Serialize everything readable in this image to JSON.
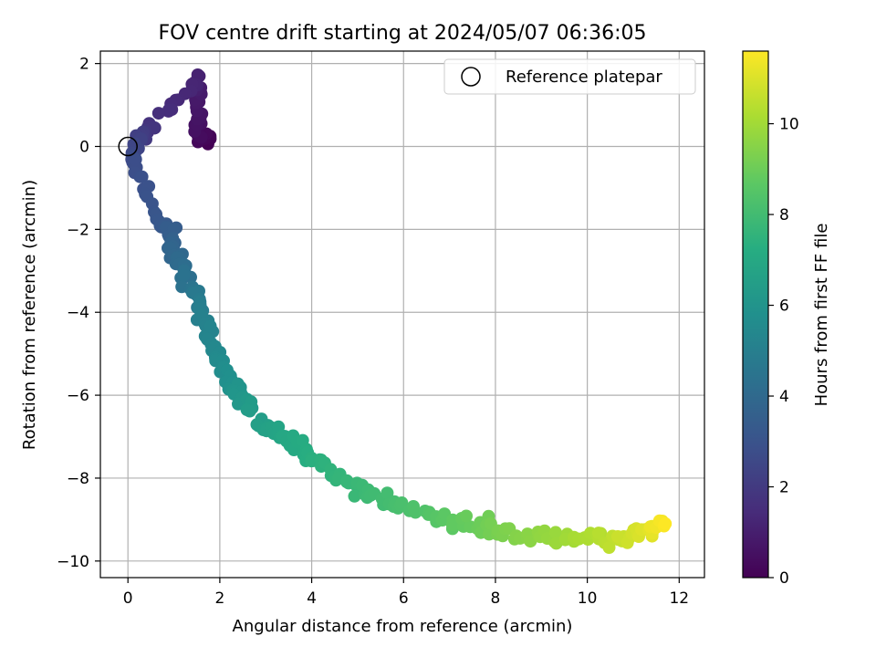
{
  "chart_data": {
    "type": "scatter",
    "title": "FOV centre drift starting at 2024/05/07 06:36:05",
    "xlabel": "Angular distance from reference (arcmin)",
    "ylabel": "Rotation from reference (arcmin)",
    "xlim": [
      -0.6,
      12.55
    ],
    "ylim": [
      -10.4,
      2.3
    ],
    "xticks": [
      0,
      2,
      4,
      6,
      8,
      10,
      12
    ],
    "yticks": [
      -10,
      -8,
      -6,
      -4,
      -2,
      0,
      2
    ],
    "grid": true,
    "legend": {
      "position": "top-right",
      "entries": [
        "Reference platepar"
      ]
    },
    "reference_point": {
      "x": 0,
      "y": 0
    },
    "colorbar": {
      "label": "Hours from first FF file",
      "colormap": "viridis",
      "range": [
        0,
        11.6
      ],
      "ticks": [
        0,
        2,
        4,
        6,
        8,
        10
      ]
    },
    "anchors": [
      {
        "h": 0.0,
        "x": 1.75,
        "y": 0.15
      },
      {
        "h": 0.3,
        "x": 1.6,
        "y": 0.3
      },
      {
        "h": 0.6,
        "x": 1.5,
        "y": 0.6
      },
      {
        "h": 0.9,
        "x": 1.55,
        "y": 1.45
      },
      {
        "h": 1.2,
        "x": 1.45,
        "y": 1.6
      },
      {
        "h": 1.6,
        "x": 0.6,
        "y": 0.6
      },
      {
        "h": 2.0,
        "x": 0.3,
        "y": 0.3
      },
      {
        "h": 2.4,
        "x": 0.12,
        "y": 0.0
      },
      {
        "h": 2.8,
        "x": 0.15,
        "y": -0.4
      },
      {
        "h": 3.1,
        "x": 0.6,
        "y": -1.75
      },
      {
        "h": 3.4,
        "x": 0.95,
        "y": -2.0
      },
      {
        "h": 3.8,
        "x": 1.0,
        "y": -2.5
      },
      {
        "h": 4.2,
        "x": 1.15,
        "y": -3.0
      },
      {
        "h": 4.6,
        "x": 1.4,
        "y": -3.5
      },
      {
        "h": 5.0,
        "x": 1.6,
        "y": -4.0
      },
      {
        "h": 5.3,
        "x": 1.85,
        "y": -4.7
      },
      {
        "h": 5.6,
        "x": 2.0,
        "y": -5.2
      },
      {
        "h": 5.9,
        "x": 2.3,
        "y": -5.8
      },
      {
        "h": 6.2,
        "x": 2.5,
        "y": -6.1
      },
      {
        "h": 6.6,
        "x": 3.0,
        "y": -6.8
      },
      {
        "h": 7.0,
        "x": 3.5,
        "y": -7.1
      },
      {
        "h": 7.3,
        "x": 4.0,
        "y": -7.5
      },
      {
        "h": 7.6,
        "x": 4.6,
        "y": -8.0
      },
      {
        "h": 7.9,
        "x": 5.3,
        "y": -8.4
      },
      {
        "h": 8.2,
        "x": 6.0,
        "y": -8.7
      },
      {
        "h": 8.6,
        "x": 6.8,
        "y": -9.0
      },
      {
        "h": 9.0,
        "x": 7.6,
        "y": -9.1
      },
      {
        "h": 9.4,
        "x": 8.4,
        "y": -9.4
      },
      {
        "h": 9.8,
        "x": 9.2,
        "y": -9.35
      },
      {
        "h": 10.2,
        "x": 10.0,
        "y": -9.45
      },
      {
        "h": 10.6,
        "x": 10.7,
        "y": -9.5
      },
      {
        "h": 11.0,
        "x": 11.2,
        "y": -9.35
      },
      {
        "h": 11.6,
        "x": 11.7,
        "y": -9.1
      }
    ],
    "points_per_segment": 11,
    "jitter": {
      "x": 0.12,
      "y": 0.18
    }
  }
}
